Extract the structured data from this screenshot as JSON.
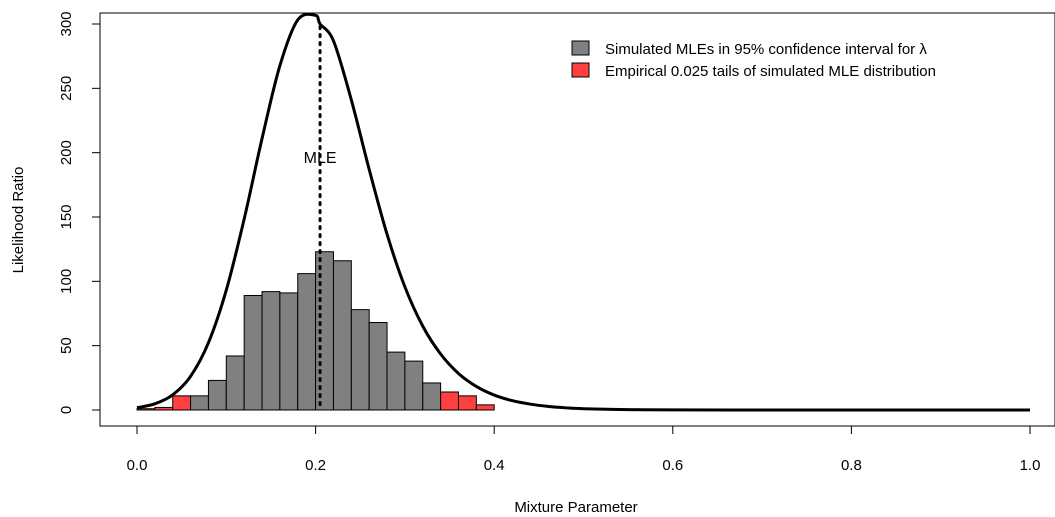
{
  "chart_data": {
    "type": "bar",
    "xlabel": "Mixture Parameter",
    "ylabel": "Likelihood Ratio",
    "xlim": [
      0,
      1
    ],
    "ylim": [
      0,
      300
    ],
    "x_ticks": [
      "0.0",
      "0.2",
      "0.4",
      "0.6",
      "0.8",
      "1.0"
    ],
    "y_ticks": [
      "0",
      "50",
      "100",
      "150",
      "200",
      "250",
      "300"
    ],
    "grid": false,
    "legend_position": "top-right",
    "legend": [
      {
        "label": "Simulated MLEs in 95% confidence interval for λ",
        "color": "#808080"
      },
      {
        "label": "Empirical 0.025 tails of simulated MLE distribution",
        "color": "#ff4040"
      }
    ],
    "annotation": {
      "text": "MLE",
      "x": 0.205
    },
    "mle_line_x": 0.205,
    "bin_width": 0.02,
    "histogram_bins": [
      {
        "x0": 0.0,
        "x1": 0.02,
        "count": 1,
        "group": "tail"
      },
      {
        "x0": 0.02,
        "x1": 0.04,
        "count": 2,
        "group": "tail"
      },
      {
        "x0": 0.04,
        "x1": 0.06,
        "count": 11,
        "group": "tail"
      },
      {
        "x0": 0.06,
        "x1": 0.08,
        "count": 11,
        "group": "ci"
      },
      {
        "x0": 0.08,
        "x1": 0.1,
        "count": 23,
        "group": "ci"
      },
      {
        "x0": 0.1,
        "x1": 0.12,
        "count": 42,
        "group": "ci"
      },
      {
        "x0": 0.12,
        "x1": 0.14,
        "count": 89,
        "group": "ci"
      },
      {
        "x0": 0.14,
        "x1": 0.16,
        "count": 92,
        "group": "ci"
      },
      {
        "x0": 0.16,
        "x1": 0.18,
        "count": 91,
        "group": "ci"
      },
      {
        "x0": 0.18,
        "x1": 0.2,
        "count": 106,
        "group": "ci"
      },
      {
        "x0": 0.2,
        "x1": 0.22,
        "count": 123,
        "group": "ci"
      },
      {
        "x0": 0.22,
        "x1": 0.24,
        "count": 116,
        "group": "ci"
      },
      {
        "x0": 0.24,
        "x1": 0.26,
        "count": 78,
        "group": "ci"
      },
      {
        "x0": 0.26,
        "x1": 0.28,
        "count": 68,
        "group": "ci"
      },
      {
        "x0": 0.28,
        "x1": 0.3,
        "count": 45,
        "group": "ci"
      },
      {
        "x0": 0.3,
        "x1": 0.32,
        "count": 38,
        "group": "ci"
      },
      {
        "x0": 0.32,
        "x1": 0.34,
        "count": 21,
        "group": "ci"
      },
      {
        "x0": 0.34,
        "x1": 0.36,
        "count": 14,
        "group": "tail"
      },
      {
        "x0": 0.36,
        "x1": 0.38,
        "count": 11,
        "group": "tail"
      },
      {
        "x0": 0.38,
        "x1": 0.4,
        "count": 4,
        "group": "tail"
      }
    ],
    "likelihood_curve": {
      "x": [
        0,
        0.02,
        0.04,
        0.06,
        0.08,
        0.1,
        0.12,
        0.14,
        0.16,
        0.18,
        0.2,
        0.205,
        0.22,
        0.24,
        0.26,
        0.28,
        0.3,
        0.32,
        0.34,
        0.36,
        0.38,
        0.4,
        0.42,
        0.44,
        0.46,
        0.48,
        0.5,
        0.55,
        0.6,
        0.7,
        0.8,
        0.9,
        1.0
      ],
      "y": [
        1.8,
        4.8,
        11.8,
        26.2,
        52.3,
        93.2,
        148.4,
        210.9,
        267.6,
        303.2,
        306.7,
        300,
        286.9,
        241.0,
        187.0,
        136.6,
        95.7,
        65.2,
        43.5,
        28.4,
        18.3,
        11.6,
        7.3,
        4.6,
        2.8,
        1.7,
        1.0,
        0.3,
        0.1,
        0,
        0,
        0,
        0
      ]
    },
    "colors": {
      "ci": "#808080",
      "tail": "#ff4040",
      "curve": "#000000"
    }
  }
}
